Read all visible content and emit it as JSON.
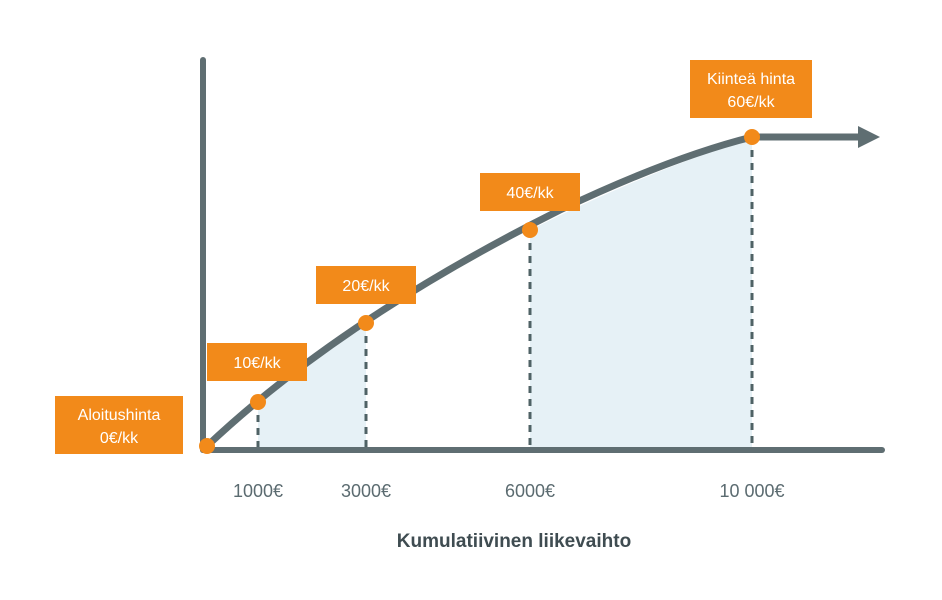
{
  "colors": {
    "axis": "#5f6e72",
    "curve": "#5f6e72",
    "fill": "#e6f1f6",
    "marker": "#f28a1a",
    "box": "#f28a1a",
    "box_text": "#ffffff",
    "dashed": "#4f6265"
  },
  "axis": {
    "title": "Kumulatiivinen liikevaihto",
    "ticks": [
      "1000€",
      "3000€",
      "6000€",
      "10 000€"
    ]
  },
  "points": [
    {
      "revenue": 0,
      "label": [
        "Aloitushinta",
        "0€/kk"
      ]
    },
    {
      "revenue": 1000,
      "label": [
        "10€/kk"
      ]
    },
    {
      "revenue": 3000,
      "label": [
        "20€/kk"
      ]
    },
    {
      "revenue": 6000,
      "label": [
        "40€/kk"
      ]
    },
    {
      "revenue": 10000,
      "label": [
        "Kiinteä hinta",
        "60€/kk"
      ]
    }
  ]
}
